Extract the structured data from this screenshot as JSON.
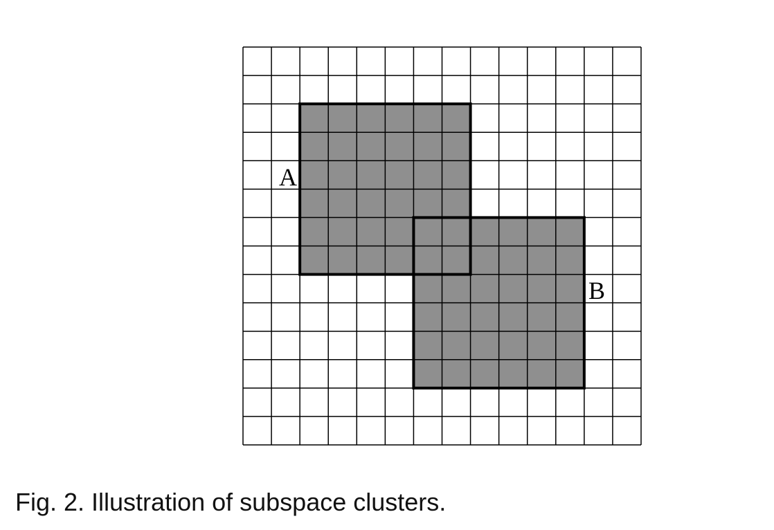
{
  "figure": {
    "grid": {
      "rows": 14,
      "cols": 14,
      "cell_fill": "#ffffff",
      "line_color": "#000000"
    },
    "clusters": [
      {
        "label": "A",
        "col_start": 2,
        "col_end": 8,
        "row_start": 2,
        "row_end": 8,
        "fill": "#8f8f8f"
      },
      {
        "label": "B",
        "col_start": 6,
        "col_end": 12,
        "row_start": 6,
        "row_end": 12,
        "fill": "#8f8f8f"
      }
    ]
  },
  "caption": "Fig. 2. Illustration of subspace clusters."
}
